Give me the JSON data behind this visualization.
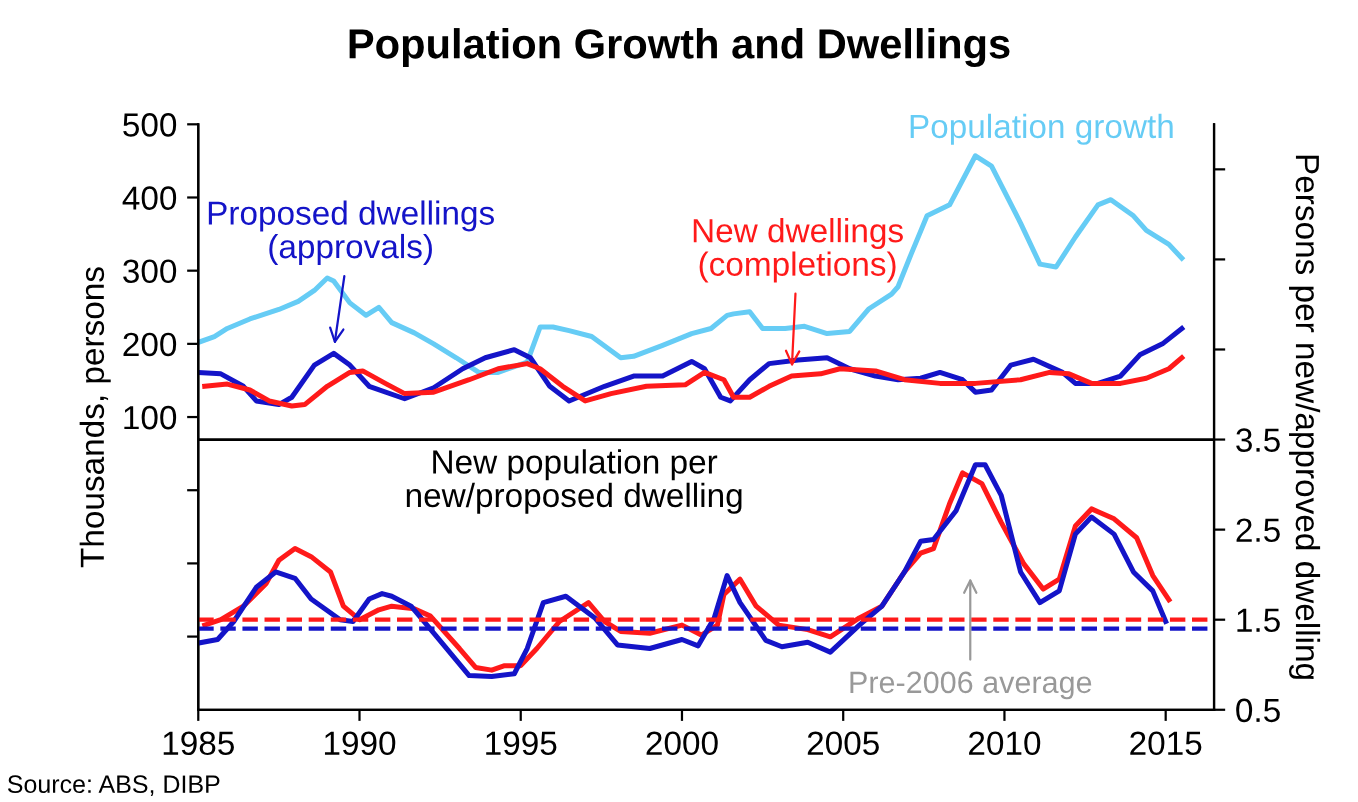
{
  "chart_data": {
    "type": "line",
    "title": "Population Growth and Dwellings",
    "ylabel": "Thousands, persons",
    "y2label": "Persons per new/approved dwelling",
    "xlim": [
      1985,
      2016.5
    ],
    "xticks": [
      1985,
      1990,
      1995,
      2000,
      2005,
      2010,
      2015
    ],
    "ylim": [
      -300,
      500
    ],
    "yticks": [
      {
        "value": -200,
        "label": null
      },
      {
        "value": -100,
        "label": null
      },
      {
        "value": 0,
        "label": null
      },
      100,
      200,
      300,
      400,
      500
    ],
    "y2lim": [
      0.5,
      7.0
    ],
    "y2ticks": [
      0.5,
      1.5,
      2.5,
      3.5,
      {
        "value": 4.5,
        "label": null
      },
      {
        "value": 5.5,
        "label": null
      },
      {
        "value": 6.5,
        "label": null
      }
    ],
    "grid": false,
    "line_style": "solid",
    "marker": "none",
    "series": [
      {
        "name": "Population growth",
        "color": "#66ccf5",
        "x": [
          1985.0,
          1985.5,
          1985.9,
          1986.6,
          1987.5,
          1988.1,
          1988.6,
          1989.0,
          1989.2,
          1989.7,
          1990.2,
          1990.6,
          1991.0,
          1991.7,
          1992.3,
          1993.0,
          1993.7,
          1994.3,
          1995.2,
          1995.6,
          1996.0,
          1996.5,
          1997.2,
          1998.1,
          1998.5,
          1999.4,
          2000.3,
          2000.9,
          2001.4,
          2001.6,
          2002.1,
          2002.5,
          2003.2,
          2003.8,
          2004.5,
          2005.2,
          2005.8,
          2006.5,
          2006.7,
          2007.1,
          2007.6,
          2008.3,
          2009.1,
          2009.6,
          2010.5,
          2011.1,
          2011.6,
          2012.2,
          2012.9,
          2013.3,
          2014.0,
          2014.4,
          2015.1,
          2015.5
        ],
        "values": [
          202,
          210,
          221,
          234,
          247,
          258,
          273,
          290,
          286,
          256,
          239,
          250,
          229,
          215,
          200,
          181,
          161,
          161,
          175,
          223,
          223,
          218,
          210,
          181,
          183,
          198,
          214,
          221,
          239,
          241,
          244,
          221,
          221,
          224,
          214,
          217,
          248,
          268,
          278,
          322,
          375,
          390,
          457,
          443,
          365,
          309,
          305,
          346,
          390,
          397,
          375,
          355,
          336,
          317
        ]
      },
      {
        "name": "Proposed dwellings\n(approvals)",
        "color": "#1414c8",
        "x": [
          1985.0,
          1985.7,
          1986.4,
          1986.8,
          1987.5,
          1987.9,
          1988.6,
          1989.2,
          1989.7,
          1990.3,
          1991.4,
          1992.3,
          1993.2,
          1993.9,
          1994.8,
          1995.3,
          1995.9,
          1996.5,
          1997.6,
          1998.5,
          1999.4,
          2000.3,
          2000.7,
          2001.2,
          2001.5,
          2002.1,
          2002.7,
          2003.6,
          2004.5,
          2005.2,
          2006.0,
          2006.7,
          2007.4,
          2008.0,
          2008.7,
          2009.1,
          2009.6,
          2010.2,
          2010.9,
          2011.8,
          2012.2,
          2012.9,
          2013.6,
          2014.2,
          2014.9,
          2015.5
        ],
        "values": [
          161,
          159,
          142,
          122,
          117,
          127,
          171,
          187,
          171,
          142,
          125,
          140,
          166,
          181,
          192,
          181,
          142,
          122,
          142,
          156,
          156,
          176,
          166,
          127,
          122,
          151,
          173,
          178,
          181,
          166,
          156,
          151,
          153,
          161,
          151,
          134,
          137,
          171,
          179,
          161,
          146,
          146,
          156,
          185,
          200,
          221
        ]
      },
      {
        "name": "New dwellings\n(completions)",
        "color": "#ff1a1a",
        "x": [
          1985.2,
          1985.9,
          1986.6,
          1987.2,
          1987.9,
          1988.3,
          1989.0,
          1989.7,
          1990.1,
          1990.8,
          1991.4,
          1992.3,
          1993.4,
          1994.3,
          1995.2,
          1995.6,
          1996.3,
          1997.0,
          1997.8,
          1998.9,
          2000.1,
          2000.7,
          2001.3,
          2001.6,
          2002.1,
          2002.7,
          2003.4,
          2004.3,
          2004.9,
          2006.0,
          2006.9,
          2008.0,
          2009.1,
          2010.5,
          2011.4,
          2012.0,
          2012.7,
          2013.6,
          2014.4,
          2015.1,
          2015.5
        ],
        "values": [
          142,
          145,
          137,
          122,
          115,
          117,
          142,
          161,
          163,
          146,
          132,
          134,
          151,
          166,
          173,
          166,
          142,
          122,
          132,
          142,
          144,
          161,
          151,
          127,
          127,
          142,
          156,
          159,
          166,
          163,
          151,
          146,
          146,
          151,
          161,
          159,
          146,
          146,
          153,
          166,
          181
        ]
      },
      {
        "axis": "y2",
        "color": "#ff1a1a",
        "x": [
          1985.2,
          1985.7,
          1986.4,
          1987.1,
          1987.5,
          1988.0,
          1988.5,
          1989.1,
          1989.5,
          1990.0,
          1990.6,
          1991.0,
          1991.7,
          1992.2,
          1993.1,
          1993.6,
          1994.1,
          1994.5,
          1995.0,
          1995.5,
          1996.2,
          1997.1,
          1997.6,
          1998.1,
          1999.0,
          2000.0,
          2000.6,
          2001.1,
          2001.3,
          2001.8,
          2002.3,
          2003.0,
          2003.9,
          2004.6,
          2005.5,
          2006.2,
          2006.9,
          2007.4,
          2007.8,
          2008.3,
          2008.7,
          2009.3,
          2009.9,
          2010.6,
          2011.2,
          2011.7,
          2012.2,
          2012.7,
          2013.4,
          2014.1,
          2014.6,
          2015.1
        ],
        "values": [
          1.44,
          1.5,
          1.65,
          1.9,
          2.16,
          2.29,
          2.2,
          2.03,
          1.65,
          1.5,
          1.61,
          1.65,
          1.62,
          1.54,
          1.18,
          0.97,
          0.94,
          0.99,
          0.99,
          1.18,
          1.48,
          1.69,
          1.48,
          1.37,
          1.35,
          1.44,
          1.33,
          1.44,
          1.78,
          1.95,
          1.65,
          1.44,
          1.39,
          1.31,
          1.52,
          1.65,
          2.03,
          2.24,
          2.29,
          2.79,
          3.13,
          3.01,
          2.58,
          2.12,
          1.84,
          1.95,
          2.54,
          2.73,
          2.62,
          2.41,
          1.99,
          1.72
        ]
      },
      {
        "axis": "y2",
        "color": "#1414c8",
        "x": [
          1985.0,
          1985.6,
          1986.1,
          1986.8,
          1987.4,
          1988.0,
          1988.5,
          1989.4,
          1989.8,
          1990.3,
          1990.7,
          1991.0,
          1991.6,
          1992.4,
          1993.4,
          1994.1,
          1994.8,
          1995.2,
          1995.7,
          1996.4,
          1997.3,
          1998.0,
          1999.0,
          2000.0,
          2000.5,
          2001.0,
          2001.4,
          2001.8,
          2002.6,
          2003.1,
          2003.9,
          2004.6,
          2005.5,
          2006.2,
          2006.9,
          2007.4,
          2007.8,
          2008.5,
          2009.1,
          2009.4,
          2009.9,
          2010.5,
          2011.1,
          2011.7,
          2012.2,
          2012.7,
          2013.4,
          2014.0,
          2014.6,
          2015.0
        ],
        "values": [
          1.24,
          1.28,
          1.48,
          1.86,
          2.03,
          1.96,
          1.73,
          1.5,
          1.48,
          1.73,
          1.79,
          1.76,
          1.65,
          1.31,
          0.88,
          0.87,
          0.9,
          1.18,
          1.69,
          1.76,
          1.52,
          1.22,
          1.18,
          1.28,
          1.21,
          1.52,
          1.99,
          1.69,
          1.27,
          1.2,
          1.25,
          1.14,
          1.44,
          1.65,
          2.03,
          2.37,
          2.39,
          2.71,
          3.22,
          3.22,
          2.88,
          2.03,
          1.69,
          1.82,
          2.45,
          2.64,
          2.45,
          2.03,
          1.82,
          1.48
        ]
      }
    ],
    "ref_lines": [
      {
        "axis": "y2",
        "value": 3.5,
        "color": "#000000",
        "line_style": "solid"
      },
      {
        "axis": "y2",
        "value": 1.5,
        "color": "#ff1a1a",
        "line_style": "dashed"
      },
      {
        "axis": "y2",
        "value": 1.4,
        "color": "#1414c8",
        "line_style": "dashed"
      }
    ],
    "annotations": [
      "New population per\nnew/proposed dwelling",
      "Pre-2006 average",
      "Source: ABS, DIBP"
    ]
  }
}
